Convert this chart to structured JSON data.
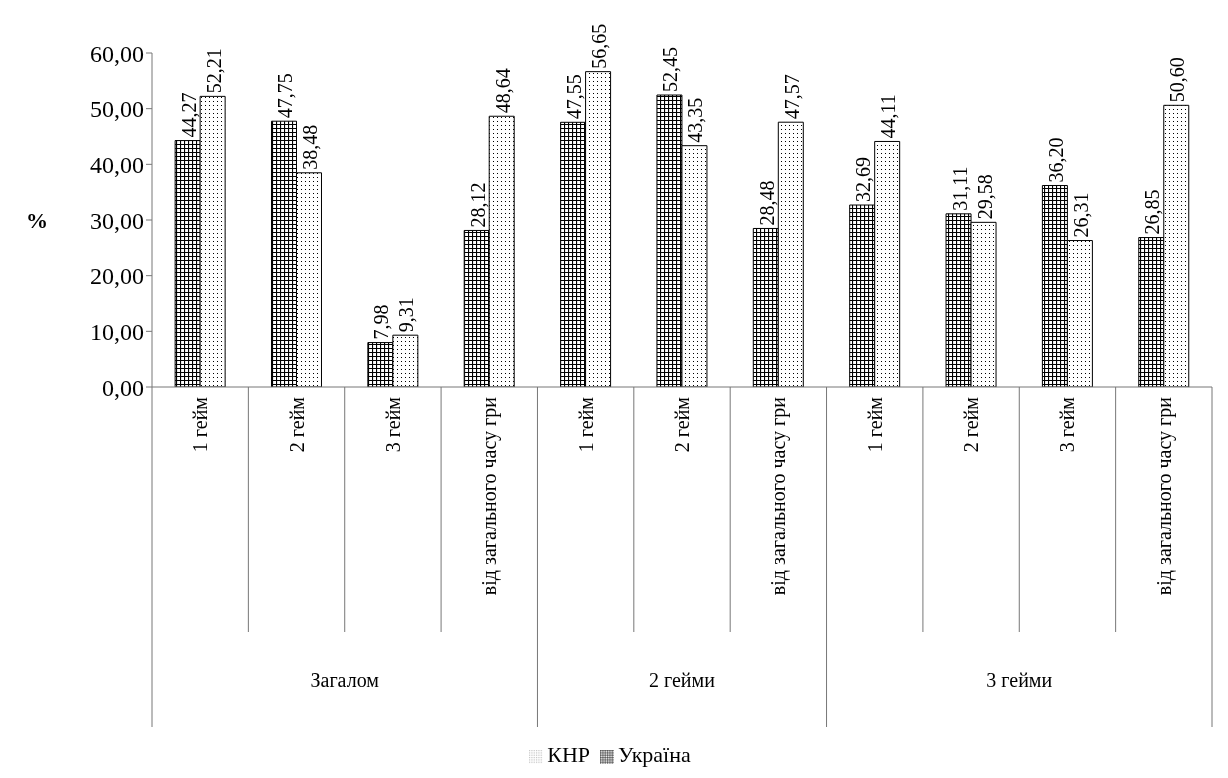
{
  "chart_data": {
    "type": "bar",
    "ylabel": "%",
    "categories": [
      "1 гейм",
      "2 гейм",
      "3 гейм",
      "від загального часу гри",
      "1 гейм",
      "2 гейм",
      "від загального часу гри",
      "1 гейм",
      "2 гейм",
      "3 гейм",
      "від загального часу гри"
    ],
    "annotations": [
      "Загалом",
      "2 гейми",
      "3 гейми"
    ],
    "series": [
      {
        "name": "Україна",
        "color": "#000000",
        "values": [
          44.27,
          47.75,
          7.98,
          28.12,
          47.55,
          52.45,
          28.48,
          32.69,
          31.11,
          36.2,
          26.85
        ],
        "value_labels": [
          "44,27",
          "47,75",
          "7,98",
          "28,12",
          "47,55",
          "52,45",
          "28,48",
          "32,69",
          "31,11",
          "36,20",
          "26,85"
        ]
      },
      {
        "name": "КНР",
        "color": "#000000",
        "values": [
          52.21,
          38.48,
          9.31,
          48.64,
          56.65,
          43.35,
          47.57,
          44.11,
          29.58,
          26.31,
          50.6
        ],
        "value_labels": [
          "52,21",
          "38,48",
          "9,31",
          "48,64",
          "56,65",
          "43,35",
          "47,57",
          "44,11",
          "29,58",
          "26,31",
          "50,60"
        ]
      }
    ],
    "ylim": [
      0,
      60
    ],
    "yticks": [
      {
        "value": 0,
        "label": "0,00"
      },
      {
        "value": 10,
        "label": "10,00"
      },
      {
        "value": 20,
        "label": "20,00"
      },
      {
        "value": 30,
        "label": "30,00"
      },
      {
        "value": 40,
        "label": "40,00"
      },
      {
        "value": 50,
        "label": "50,00"
      },
      {
        "value": 60,
        "label": "60,00"
      }
    ],
    "grid": false,
    "legend": "bottom"
  }
}
